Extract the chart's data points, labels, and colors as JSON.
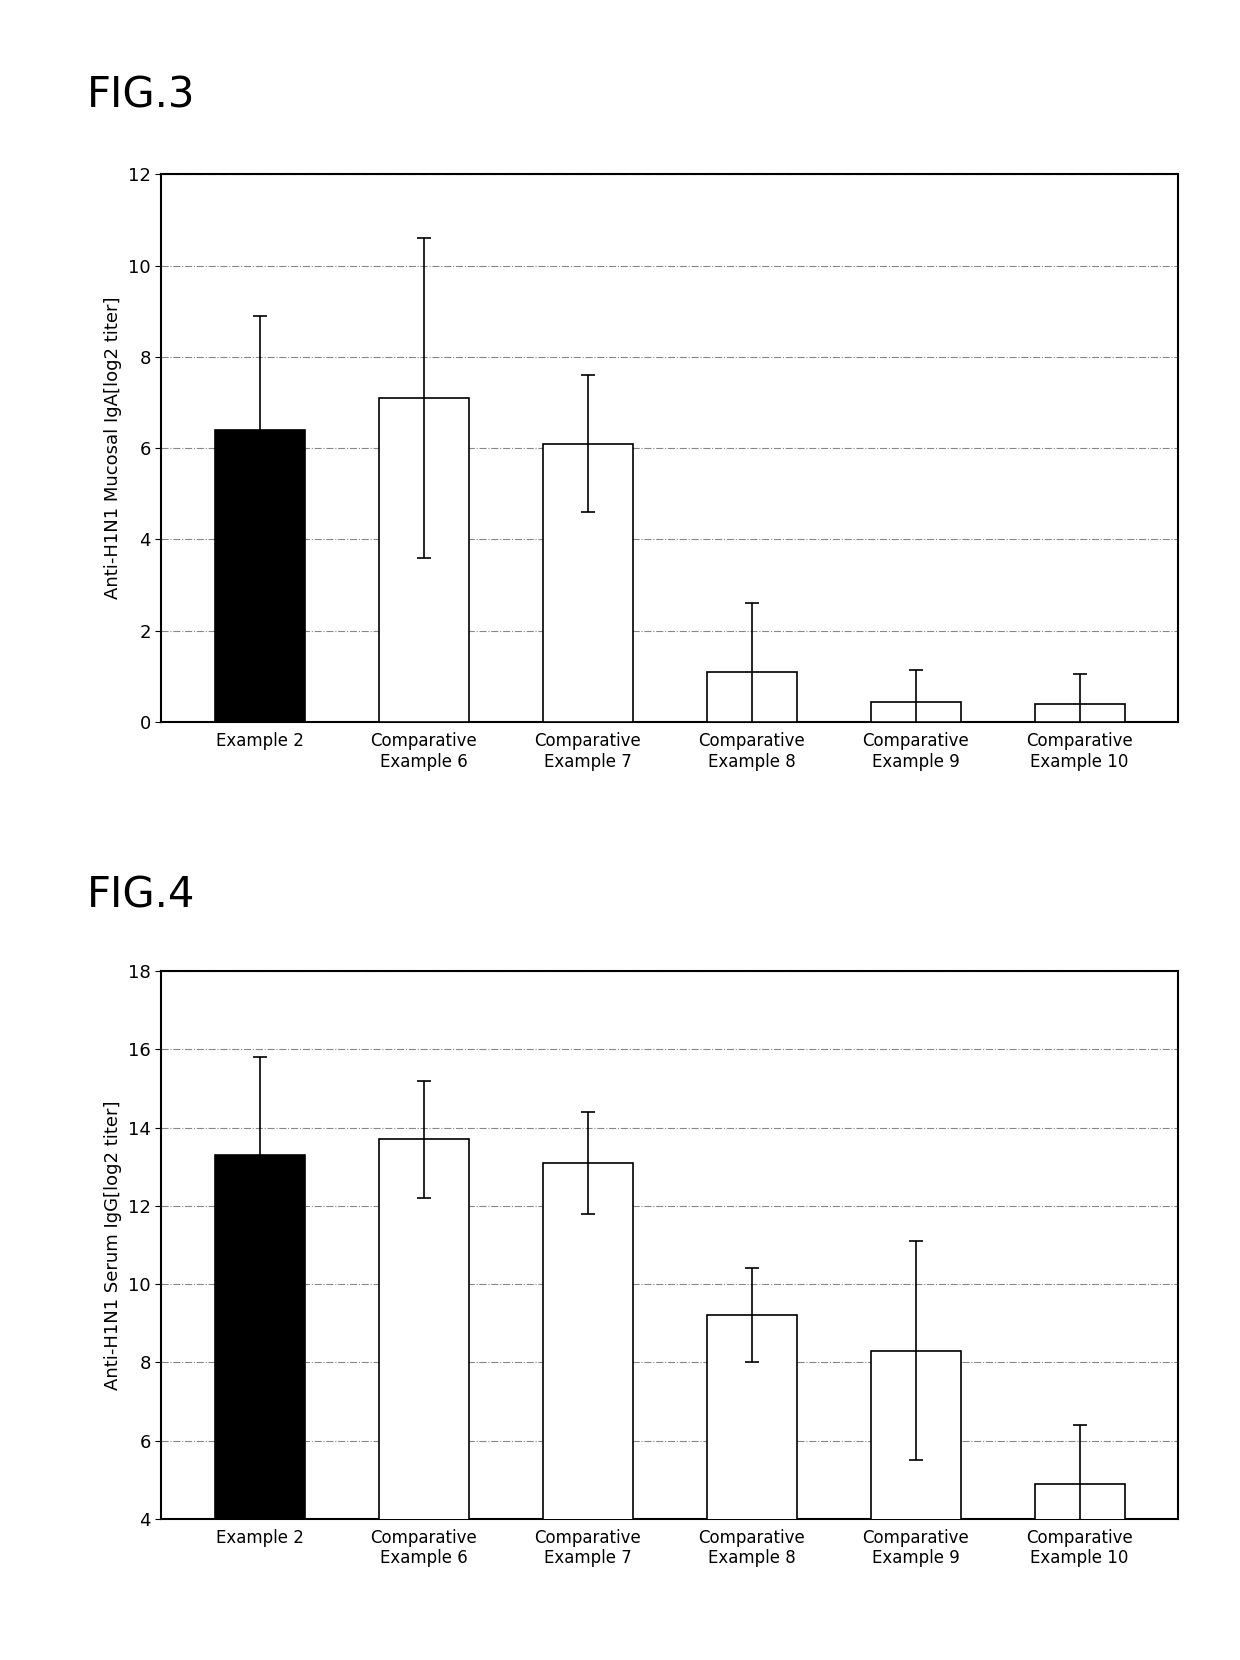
{
  "fig3": {
    "title": "FIG.3",
    "ylabel": "Anti-H1N1 Mucosal IgA[log2 titer]",
    "categories": [
      "Example 2",
      "Comparative\nExample 6",
      "Comparative\nExample 7",
      "Comparative\nExample 8",
      "Comparative\nExample 9",
      "Comparative\nExample 10"
    ],
    "values": [
      6.4,
      7.1,
      6.1,
      1.1,
      0.45,
      0.4
    ],
    "errors": [
      2.5,
      3.5,
      1.5,
      1.5,
      0.7,
      0.65
    ],
    "bar_colors": [
      "#000000",
      "#ffffff",
      "#ffffff",
      "#ffffff",
      "#ffffff",
      "#ffffff"
    ],
    "ylim": [
      0,
      12
    ],
    "yticks": [
      0,
      2,
      4,
      6,
      8,
      10,
      12
    ]
  },
  "fig4": {
    "title": "FIG.4",
    "ylabel": "Anti-H1N1 Serum IgG[log2 titer]",
    "categories": [
      "Example 2",
      "Comparative\nExample 6",
      "Comparative\nExample 7",
      "Comparative\nExample 8",
      "Comparative\nExample 9",
      "Comparative\nExample 10"
    ],
    "values": [
      13.3,
      13.7,
      13.1,
      9.2,
      8.3,
      4.9
    ],
    "errors": [
      2.5,
      1.5,
      1.3,
      1.2,
      2.8,
      1.5
    ],
    "bar_colors": [
      "#000000",
      "#ffffff",
      "#ffffff",
      "#ffffff",
      "#ffffff",
      "#ffffff"
    ],
    "ylim": [
      4,
      18
    ],
    "yticks": [
      4,
      6,
      8,
      10,
      12,
      14,
      16,
      18
    ]
  },
  "background_color": "#ffffff",
  "bar_edge_color": "#000000",
  "bar_width": 0.55,
  "title_fontsize": 30,
  "label_fontsize": 13,
  "tick_fontsize": 13,
  "xticklabel_fontsize": 12
}
